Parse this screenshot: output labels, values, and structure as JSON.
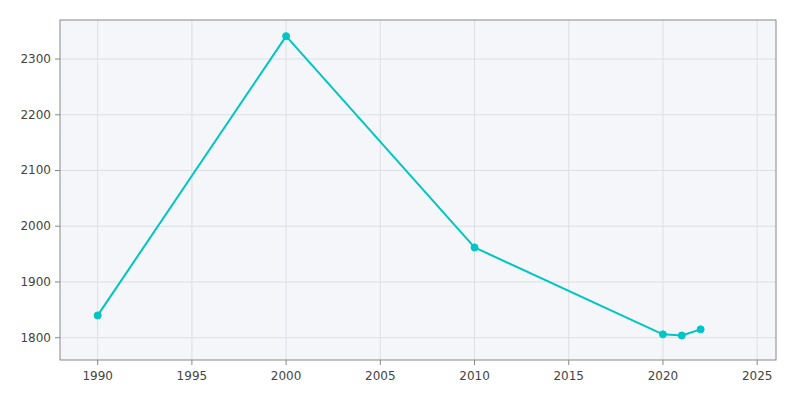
{
  "chart_data": {
    "type": "line",
    "x": [
      1990,
      2000,
      2010,
      2020,
      2021,
      2022
    ],
    "values": [
      1840,
      2341,
      1962,
      1806,
      1804,
      1815
    ],
    "color": "#00C5C5",
    "marker": "circle",
    "xlim": [
      1988,
      2026
    ],
    "ylim": [
      1760,
      2370
    ],
    "xticks": [
      1990,
      1995,
      2000,
      2005,
      2010,
      2015,
      2020,
      2025
    ],
    "yticks": [
      1800,
      1900,
      2000,
      2100,
      2200,
      2300
    ],
    "grid": true
  }
}
